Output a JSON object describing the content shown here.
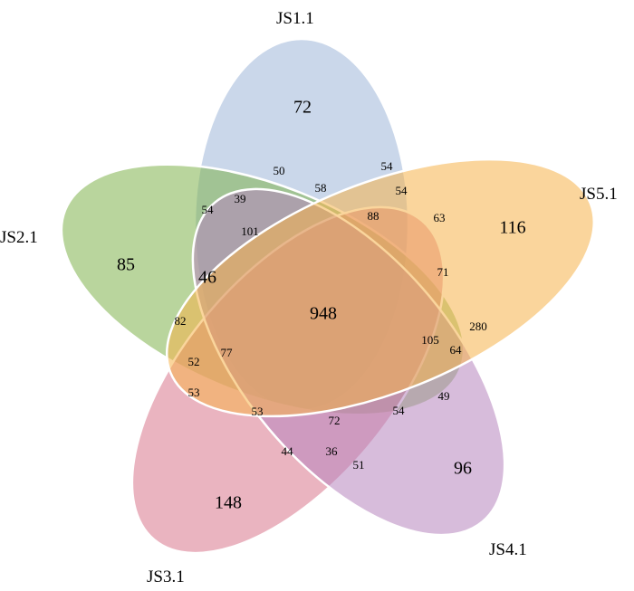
{
  "venn": {
    "sets": [
      {
        "id": "s1",
        "label": "JS1.1",
        "color": "#9fb6d9"
      },
      {
        "id": "s2",
        "label": "JS2.1",
        "color": "#7fb34d"
      },
      {
        "id": "s3",
        "label": "JS3.1",
        "color": "#d9768c"
      },
      {
        "id": "s4",
        "label": "JS4.1",
        "color": "#b685bd"
      },
      {
        "id": "s5",
        "label": "JS5.1",
        "color": "#f5b24a"
      }
    ],
    "regions": [
      {
        "sets": "1",
        "value": "72"
      },
      {
        "sets": "2",
        "value": "85"
      },
      {
        "sets": "3",
        "value": "148"
      },
      {
        "sets": "4",
        "value": "96"
      },
      {
        "sets": "5",
        "value": "116"
      },
      {
        "sets": "1-4",
        "value": "50"
      },
      {
        "sets": "1-5",
        "value": "54"
      },
      {
        "sets": "1-2-4",
        "value": "39"
      },
      {
        "sets": "1-4-5",
        "value": "58"
      },
      {
        "sets": "1-2",
        "value": "54"
      },
      {
        "sets": "1-2-4-5",
        "value": "101"
      },
      {
        "sets": "1-3-4-5",
        "value": "54"
      },
      {
        "sets": "1-3-5",
        "value": "63"
      },
      {
        "sets": "1-2-3-4-5 part",
        "value": "88"
      },
      {
        "sets": "2-4",
        "value": "46"
      },
      {
        "sets": "3-5",
        "value": "71"
      },
      {
        "sets": "all",
        "value": "948"
      },
      {
        "sets": "2-3-4",
        "value": "82"
      },
      {
        "sets": "4-5",
        "value": "280"
      },
      {
        "sets": "2-3-4-5",
        "value": "105"
      },
      {
        "sets": "3-4-5",
        "value": "64"
      },
      {
        "sets": "2-3",
        "value": "52"
      },
      {
        "sets": "2-3-5",
        "value": "77"
      },
      {
        "sets": "2-5",
        "value": "53"
      },
      {
        "sets": "2-4-5 low",
        "value": "53"
      },
      {
        "sets": "3-4-5 low",
        "value": "72"
      },
      {
        "sets": "3-4",
        "value": "54"
      },
      {
        "sets": "4-5b",
        "value": "49"
      },
      {
        "sets": "3-5b",
        "value": "44"
      },
      {
        "sets": "3-4b",
        "value": "36"
      },
      {
        "sets": "3-4c",
        "value": "51"
      }
    ]
  }
}
